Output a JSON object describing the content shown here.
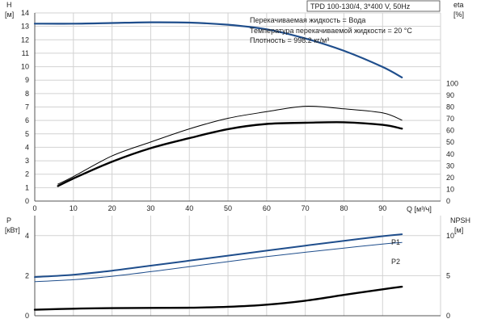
{
  "header": {
    "title": "TPD 100-130/4, 3*400 V, 50Hz",
    "info_lines": [
      "Перекачиваемая жидкость = Вода",
      "Температура перекачиваемой жидкости = 20 °C",
      "Плотность = 998.2 кг/м³"
    ]
  },
  "colors": {
    "blue": "#1f4e8c",
    "black": "#000000",
    "grid": "#d2d2d2"
  },
  "chart_data": [
    {
      "type": "line",
      "name": "head-efficiency",
      "xlabel": "Q [м³/ч]",
      "x_ticks": [
        0,
        10,
        20,
        30,
        40,
        50,
        60,
        70,
        80,
        90
      ],
      "xlim": [
        0,
        105
      ],
      "y_left": {
        "label_top": "H",
        "label_unit": "[м]",
        "ylim": [
          0,
          14
        ],
        "ticks": [
          0,
          1,
          2,
          3,
          4,
          5,
          6,
          7,
          8,
          9,
          10,
          11,
          12,
          13,
          14
        ]
      },
      "y_right": {
        "label_top": "eta",
        "label_unit": "[%]",
        "ylim": [
          0,
          160
        ],
        "ticks": [
          0,
          10,
          20,
          30,
          40,
          50,
          60,
          70,
          80,
          90,
          100
        ]
      },
      "series": [
        {
          "axis": "left",
          "color": "#1f4e8c",
          "width": 2.2,
          "x": [
            0,
            10,
            20,
            30,
            40,
            50,
            60,
            70,
            80,
            90,
            95
          ],
          "y": [
            13.2,
            13.2,
            13.25,
            13.3,
            13.28,
            13.12,
            12.78,
            12.1,
            11.18,
            9.98,
            9.2
          ]
        },
        {
          "axis": "right",
          "color": "#000000",
          "width": 2.4,
          "x": [
            6,
            10,
            20,
            30,
            40,
            50,
            60,
            70,
            80,
            90,
            95
          ],
          "y": [
            12.8,
            19.2,
            33.5,
            45,
            53.5,
            61.2,
            65.6,
            66.6,
            67,
            64.8,
            61.6
          ]
        },
        {
          "axis": "right",
          "color": "#000000",
          "width": 1.0,
          "x": [
            6,
            10,
            20,
            30,
            40,
            50,
            60,
            70,
            80,
            90,
            95
          ],
          "y": [
            14.4,
            20.8,
            38.4,
            50.2,
            61.4,
            70.4,
            76,
            80.6,
            78.4,
            75,
            68.8
          ]
        }
      ]
    },
    {
      "type": "line",
      "name": "power-npsh",
      "x_ticks": [
        0,
        10,
        20,
        30,
        40,
        50,
        60,
        70,
        80,
        90
      ],
      "xlim": [
        0,
        105
      ],
      "y_left": {
        "label_top": "P",
        "label_unit": "[кВт]",
        "ylim": [
          0,
          5
        ],
        "ticks": [
          0,
          2,
          4
        ]
      },
      "y_right": {
        "label_top": "NPSH",
        "label_unit": "[м]",
        "ylim": [
          0,
          12.5
        ],
        "ticks": [
          0,
          5,
          10
        ]
      },
      "series": [
        {
          "name": "P1",
          "axis": "left",
          "color": "#1f4e8c",
          "width": 2.0,
          "x": [
            0,
            10,
            20,
            30,
            40,
            50,
            60,
            70,
            80,
            90,
            95
          ],
          "y": [
            1.93,
            2.05,
            2.25,
            2.5,
            2.75,
            3.0,
            3.25,
            3.5,
            3.74,
            3.97,
            4.07
          ]
        },
        {
          "name": "P2",
          "axis": "left",
          "color": "#1f4e8c",
          "width": 1.0,
          "x": [
            0,
            10,
            20,
            30,
            40,
            50,
            60,
            70,
            80,
            90,
            95
          ],
          "y": [
            1.7,
            1.8,
            1.97,
            2.2,
            2.45,
            2.7,
            2.95,
            3.17,
            3.38,
            3.58,
            3.66
          ]
        },
        {
          "axis": "right",
          "color": "#000000",
          "width": 2.4,
          "x": [
            0,
            10,
            20,
            30,
            40,
            50,
            60,
            70,
            80,
            90,
            95
          ],
          "y": [
            0.75,
            0.88,
            0.95,
            0.98,
            1.0,
            1.12,
            1.38,
            1.88,
            2.6,
            3.3,
            3.62
          ]
        }
      ]
    }
  ]
}
